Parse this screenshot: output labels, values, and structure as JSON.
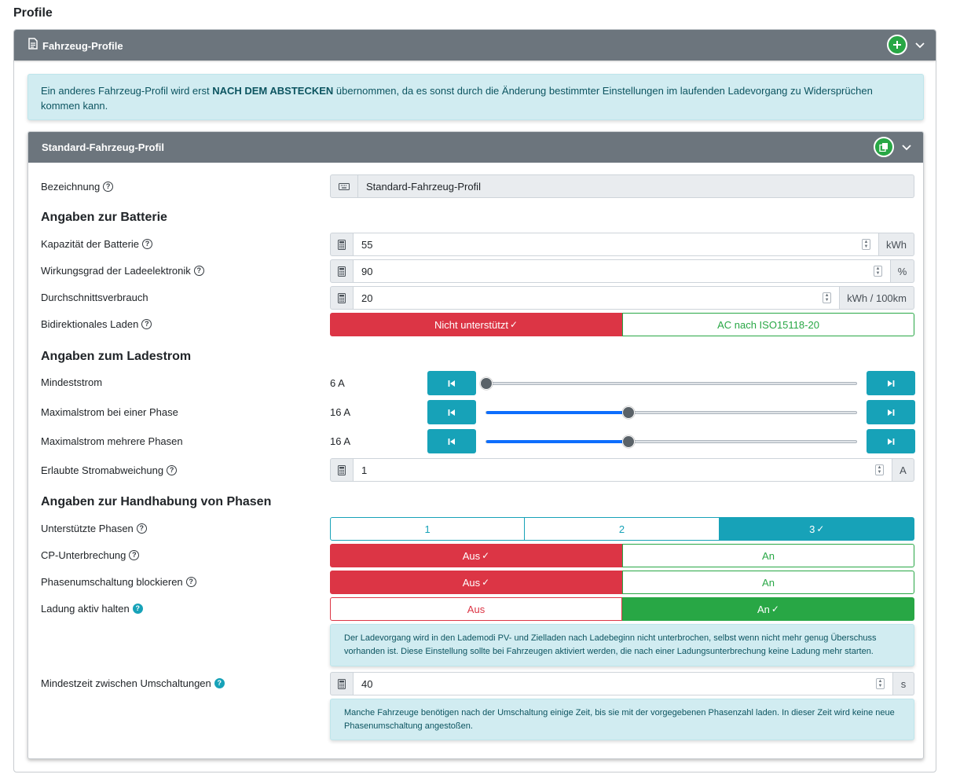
{
  "page": {
    "title": "Profile"
  },
  "outer": {
    "title": "Fahrzeug-Profile",
    "icon": "file-icon",
    "add_icon": "plus-icon",
    "collapse_icon": "chevron-down-icon",
    "notice_pre": "Ein anderes Fahrzeug-Profil wird erst ",
    "notice_bold": "NACH DEM ABSTECKEN",
    "notice_post": " übernommen, da es sonst durch die Änderung bestimmter Einstellungen im laufenden Ladevorgang zu Widersprüchen kommen kann."
  },
  "profile": {
    "title": "Standard-Fahrzeug-Profil",
    "copy_icon": "copy-icon",
    "name_label": "Bezeichnung",
    "name_value": "Standard-Fahrzeug-Profil",
    "battery_section": "Angaben zur Batterie",
    "capacity_label": "Kapazität der Batterie",
    "capacity_value": "55",
    "capacity_unit": "kWh",
    "efficiency_label": "Wirkungsgrad der Ladeelektronik",
    "efficiency_value": "90",
    "efficiency_unit": "%",
    "consumption_label": "Durchschnittsverbrauch",
    "consumption_value": "20",
    "consumption_unit": "kWh / 100km",
    "bidi_label": "Bidirektionales Laden",
    "bidi_options": [
      "Nicht unterstützt",
      "AC nach ISO15118-20"
    ],
    "bidi_selected": 0,
    "current_section": "Angaben zum Ladestrom",
    "min_current_label": "Mindeststrom",
    "min_current_value": "6 A",
    "min_current_fraction": 0.0,
    "max_single_label": "Maximalstrom bei einer Phase",
    "max_single_value": "16 A",
    "max_single_fraction": 0.385,
    "max_multi_label": "Maximalstrom mehrere Phasen",
    "max_multi_value": "16 A",
    "max_multi_fraction": 0.385,
    "deviation_label": "Erlaubte Stromabweichung",
    "deviation_value": "1",
    "deviation_unit": "A",
    "phases_section": "Angaben zur Handhabung von Phasen",
    "supported_phases_label": "Unterstützte Phasen",
    "phase_options": [
      "1",
      "2",
      "3"
    ],
    "phase_selected": 2,
    "cp_label": "CP-Unterbrechung",
    "cp_options": [
      "Aus",
      "An"
    ],
    "cp_selected": 0,
    "block_label": "Phasenumschaltung blockieren",
    "block_options": [
      "Aus",
      "An"
    ],
    "block_selected": 0,
    "keep_label": "Ladung aktiv halten",
    "keep_options": [
      "Aus",
      "An"
    ],
    "keep_selected": 1,
    "keep_info": "Der Ladevorgang wird in den Lademodi PV- und Zielladen nach Ladebeginn nicht unterbrochen, selbst wenn nicht mehr genug Überschuss vorhanden ist. Diese Einstellung sollte bei Fahrzeugen aktiviert werden, die nach einer Ladungsunterbrechung keine Ladung mehr starten.",
    "min_time_label": "Mindestzeit zwischen Umschaltungen",
    "min_time_value": "40",
    "min_time_unit": "s",
    "min_time_info": "Manche Fahrzeuge benötigen nach der Umschaltung einige Zeit, bis sie mit der vorgegebenen Phasenzahl laden. In dieser Zeit wird keine neue Phasenumschaltung angestoßen."
  },
  "help_symbol": "?",
  "check_symbol": "✓",
  "colors": {
    "header": "#6c757d",
    "danger": "#dc3545",
    "success": "#28a745",
    "info": "#17a2b8",
    "alert_bg": "#d1ecf1"
  }
}
